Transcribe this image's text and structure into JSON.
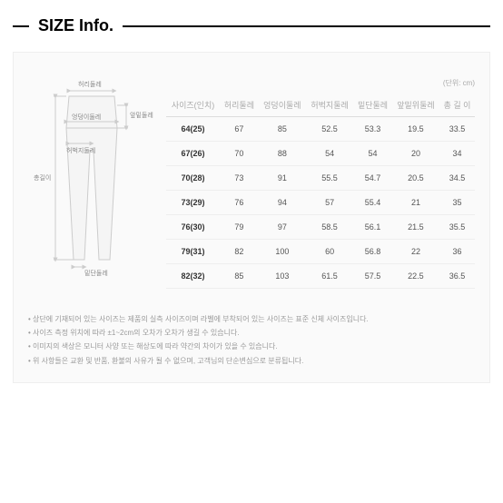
{
  "section": {
    "title": "SIZE Info."
  },
  "unit_label": "(단위: cm)",
  "diagram": {
    "labels": {
      "waist": "허리둘레",
      "hip": "엉덩이둘레",
      "thigh": "허벅지둘레",
      "front_rise": "앞밑둘레",
      "total_length": "총길이",
      "hem": "밑단둘레"
    }
  },
  "table": {
    "columns": [
      "사이즈(인치)",
      "허리둘레",
      "엉덩이둘레",
      "허벅지둘레",
      "밑단둘레",
      "앞밑위둘레",
      "총 길 이"
    ],
    "rows": [
      [
        "64(25)",
        "67",
        "85",
        "52.5",
        "53.3",
        "19.5",
        "33.5"
      ],
      [
        "67(26)",
        "70",
        "88",
        "54",
        "54",
        "20",
        "34"
      ],
      [
        "70(28)",
        "73",
        "91",
        "55.5",
        "54.7",
        "20.5",
        "34.5"
      ],
      [
        "73(29)",
        "76",
        "94",
        "57",
        "55.4",
        "21",
        "35"
      ],
      [
        "76(30)",
        "79",
        "97",
        "58.5",
        "56.1",
        "21.5",
        "35.5"
      ],
      [
        "79(31)",
        "82",
        "100",
        "60",
        "56.8",
        "22",
        "36"
      ],
      [
        "82(32)",
        "85",
        "103",
        "61.5",
        "57.5",
        "22.5",
        "36.5"
      ]
    ]
  },
  "notes": [
    "상단에 기재되어 있는 사이즈는 제품의 실측 사이즈이며 라벨에 부착되어 있는 사이즈는 표준 신체 사이즈입니다.",
    "사이즈 측정 위치에 따라 ±1~2cm의 오차가 오차가 생길 수 있습니다.",
    "이미지의 색상은 모니터 사양 또는 해상도에 따라 약간의 차이가 있을 수 있습니다.",
    "위 사항들은 교환 및 반품, 환불의 사유가 될 수 없으며, 고객님의 단순변심으로 분류됩니다."
  ]
}
